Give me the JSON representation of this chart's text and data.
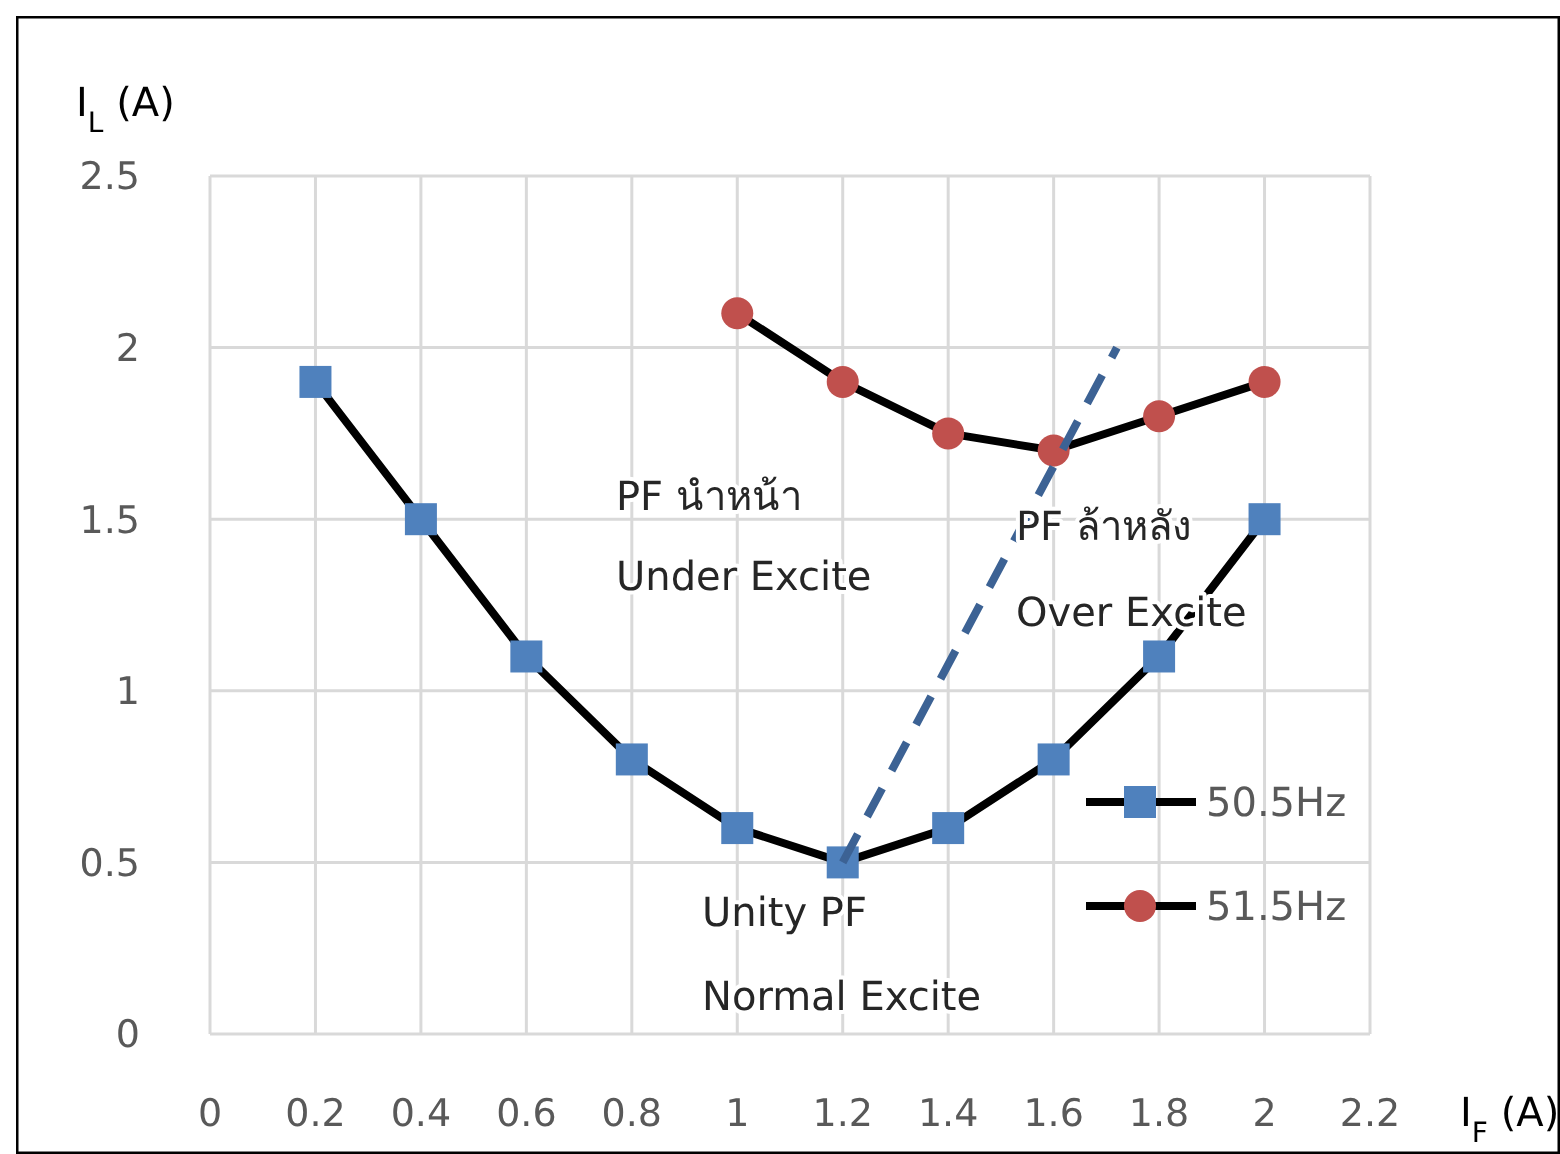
{
  "chart_data": {
    "type": "line",
    "xlabel": "I$_{F}$ (A)",
    "ylabel": "I$_{L}$ (A)",
    "xlim": [
      0,
      2.2
    ],
    "xticks": [
      0,
      0.2,
      0.4,
      0.6,
      0.8,
      1,
      1.2,
      1.4,
      1.6,
      1.8,
      2,
      2.2
    ],
    "ylim": [
      0,
      2.5
    ],
    "yticks": [
      0,
      0.5,
      1,
      1.5,
      2,
      2.5
    ],
    "grid": true,
    "legend": "right",
    "series": [
      {
        "name": "50.5Hz",
        "color": "#4f81bd",
        "marker": "square",
        "x": [
          0.2,
          0.4,
          0.6,
          0.8,
          1,
          1.2,
          1.4,
          1.6,
          1.8,
          2
        ],
        "values": [
          1.9,
          1.5,
          1.1,
          0.8,
          0.6,
          0.5,
          0.6,
          0.8,
          1.1,
          1.5
        ]
      },
      {
        "name": "51.5Hz",
        "color": "#c0504d",
        "marker": "circle",
        "x": [
          1,
          1.2,
          1.4,
          1.6,
          1.8,
          2
        ],
        "values": [
          2.1,
          1.9,
          1.75,
          1.7,
          1.8,
          1.9
        ]
      },
      {
        "color": "#3c6294",
        "marker": "none",
        "line_style": "dashed",
        "x": [
          1.2,
          1.72
        ],
        "values": [
          0.5,
          2.0
        ]
      }
    ],
    "annotations": [
      "PF นำหน้า",
      "Under Excite",
      "PF ล้าหลัง",
      "Over Excite",
      "Unity PF",
      "Normal Excite"
    ]
  }
}
